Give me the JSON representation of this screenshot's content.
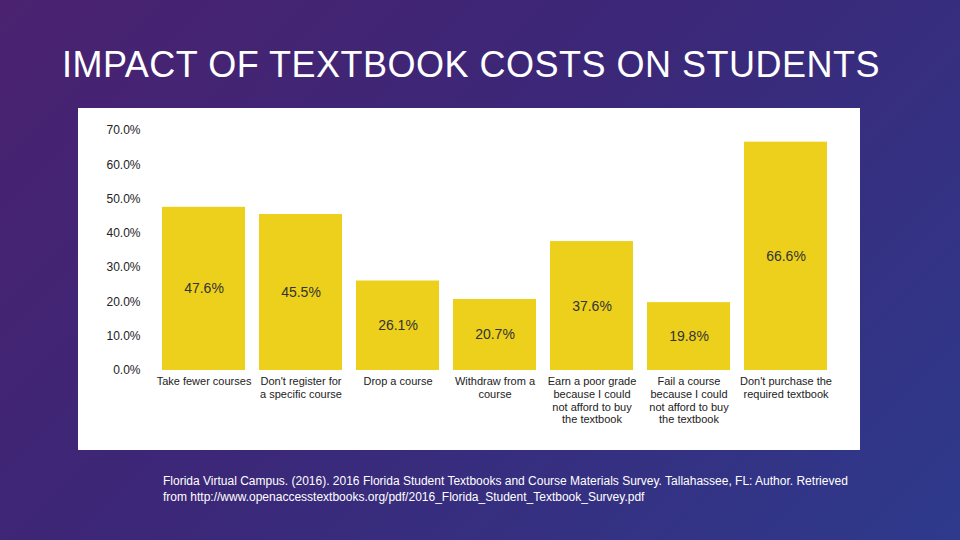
{
  "chart_data": {
    "type": "bar",
    "title": "IMPACT OF TEXTBOOK COSTS ON STUDENTS",
    "caption": "Florida Virtual Campus. (2016). 2016 Florida Student Textbooks and Course Materials Survey. Tallahassee, FL: Author. Retrieved from http://www.openaccesstextbooks.org/pdf/2016_Florida_Student_Textbook_Survey.pdf",
    "categories": [
      "Take fewer courses",
      "Don't register for a specific course",
      "Drop a course",
      "Withdraw from a course",
      "Earn a poor grade because I could not afford to buy the textbook",
      "Fail a course because I could not afford to buy the textbook",
      "Don't purchase the required textbook"
    ],
    "values": [
      47.6,
      45.5,
      26.1,
      20.7,
      37.6,
      19.8,
      66.6
    ],
    "value_labels": [
      "47.6%",
      "45.5%",
      "26.1%",
      "20.7%",
      "37.6%",
      "19.8%",
      "66.6%"
    ],
    "color": "#ecd01c",
    "ylim": [
      0,
      70
    ],
    "yticks": [
      {
        "value": 0,
        "label": "0.0%"
      },
      {
        "value": 10,
        "label": "10.0%"
      },
      {
        "value": 20,
        "label": "20.0%"
      },
      {
        "value": 30,
        "label": "30.0%"
      },
      {
        "value": 40,
        "label": "40.0%"
      },
      {
        "value": 50,
        "label": "50.0%"
      },
      {
        "value": 60,
        "label": "60.0%"
      },
      {
        "value": 70,
        "label": "70.0%"
      }
    ],
    "grid": false,
    "data_labels": true
  }
}
